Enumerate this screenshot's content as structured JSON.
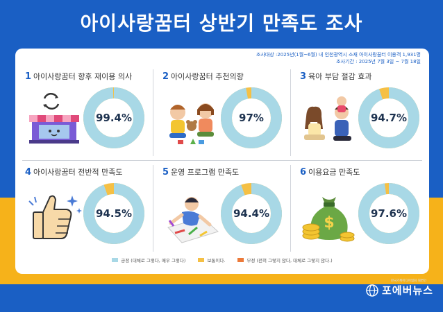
{
  "title": "아이사랑꿈터 상반기 만족도 조사",
  "survey": {
    "target": "조사대상 :2025년(1월~6월) 내 인천광역시 소재  아이사랑꿈터 이용객 1,931명",
    "period": "조사기간 : 2025년 7월 3일 ~ 7월 18일"
  },
  "colors": {
    "positive": "#a8d8e6",
    "neutral": "#f5c045",
    "negative": "#ec7a3a",
    "brand_blue": "#1a5fc4",
    "band_yellow": "#f6b21a"
  },
  "items": [
    {
      "num": "1",
      "label": "아이사랑꿈터 향후 재이용 의사",
      "value_text": "99.4%",
      "icon": "shop-icon"
    },
    {
      "num": "2",
      "label": "아이사랑꿈터 추천의향",
      "value_text": "97%",
      "icon": "kids-playing-icon"
    },
    {
      "num": "3",
      "label": "육아 부담 절감 효과",
      "value_text": "94.7%",
      "icon": "family-icon"
    },
    {
      "num": "4",
      "label": "아이사랑꿈터 전반적 만족도",
      "value_text": "94.5%",
      "icon": "thumbs-up-icon"
    },
    {
      "num": "5",
      "label": "운영 프로그램 만족도",
      "value_text": "94.4%",
      "icon": "child-drawing-icon"
    },
    {
      "num": "6",
      "label": "이용요금 만족도",
      "value_text": "97.6%",
      "icon": "money-bag-icon"
    }
  ],
  "legend": [
    {
      "label": "긍정 (대체로 그렇다, 매우 그렇다)",
      "color": "#a8d8e6"
    },
    {
      "label": "보통이다.",
      "color": "#f5c045"
    },
    {
      "label": "부정 (전혀 그렇지 않다, 대체로 그렇지 않다.)",
      "color": "#ec7a3a"
    }
  ],
  "logo": {
    "text": "포에버뉴스",
    "sub": "한국기록미디어협회 대변인"
  },
  "chart_data": {
    "type": "pie",
    "categories": [
      "아이사랑꿈터 향후 재이용 의사",
      "아이사랑꿈터 추천의향",
      "육아 부담 절감 효과",
      "아이사랑꿈터 전반적 만족도",
      "운영 프로그램 만족도",
      "이용요금 만족도"
    ],
    "series": [
      {
        "name": "긍정 (대체로 그렇다, 매우 그렇다)",
        "values": [
          99.4,
          97.0,
          94.7,
          94.5,
          94.4,
          97.6
        ]
      }
    ],
    "legend_position": "bottom"
  }
}
